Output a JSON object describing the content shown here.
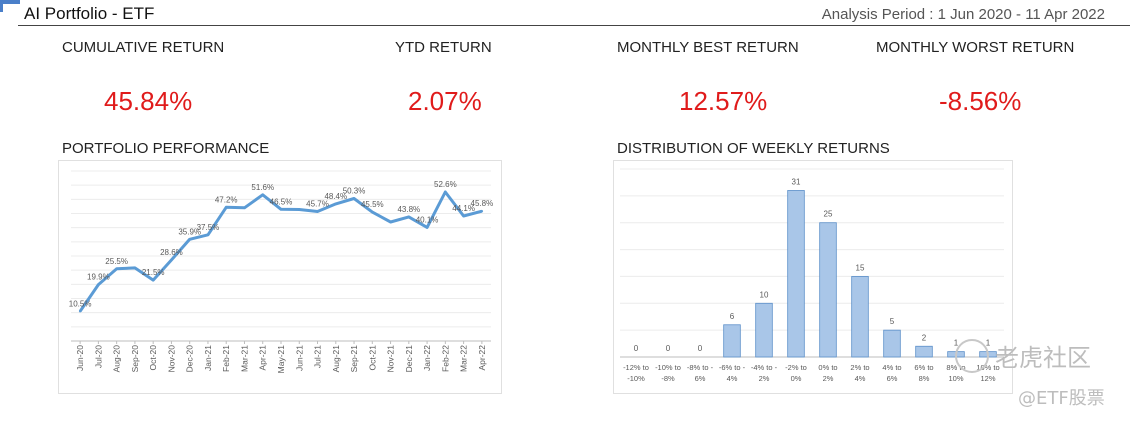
{
  "header": {
    "title": "AI Portfolio - ETF",
    "period": "Analysis Period : 1 Jun 2020 - 11 Apr 2022"
  },
  "metrics": {
    "cumulative": {
      "label": "CUMULATIVE RETURN",
      "value": "45.84%"
    },
    "ytd": {
      "label": "YTD RETURN",
      "value": "2.07%"
    },
    "best": {
      "label": "MONTHLY BEST RETURN",
      "value": "12.57%"
    },
    "worst": {
      "label": "MONTHLY WORST RETURN",
      "value": "-8.56%"
    }
  },
  "sections": {
    "performance": "PORTFOLIO PERFORMANCE",
    "distribution": "DISTRIBUTION OF WEEKLY RETURNS"
  },
  "colors": {
    "accent_red": "#e01b1b",
    "line_blue": "#5b9bd5",
    "bar_fill": "#a9c6e8",
    "bar_stroke": "#5b8fc9"
  },
  "watermark": {
    "main": "老虎社区",
    "sub": "@ETF股票"
  },
  "chart_data": [
    {
      "type": "line",
      "title": "PORTFOLIO PERFORMANCE",
      "categories": [
        "Jun-20",
        "Jul-20",
        "Aug-20",
        "Sep-20",
        "Oct-20",
        "Nov-20",
        "Dec-20",
        "Jan-21",
        "Feb-21",
        "Mar-21",
        "Apr-21",
        "May-21",
        "Jun-21",
        "Jul-21",
        "Aug-21",
        "Sep-21",
        "Oct-21",
        "Nov-21",
        "Dec-21",
        "Jan-22",
        "Feb-22",
        "Mar-22",
        "Apr-22"
      ],
      "values": [
        10.5,
        19.9,
        25.5,
        25.8,
        21.5,
        28.6,
        35.9,
        37.5,
        47.2,
        47.0,
        51.6,
        46.5,
        46.4,
        45.7,
        48.4,
        50.3,
        45.5,
        42.0,
        43.8,
        40.1,
        52.6,
        44.1,
        45.8
      ],
      "data_labels": {
        "0": "10.5%",
        "1": "19.9%",
        "2": "25.5%",
        "4": "21.5%",
        "5": "28.6%",
        "6": "35.9%",
        "7": "37.5%",
        "8": "47.2%",
        "10": "51.6%",
        "11": "46.5%",
        "13": "45.7%",
        "14": "48.4%",
        "15": "50.3%",
        "16": "45.5%",
        "18": "43.8%",
        "19": "40.1%",
        "20": "52.6%",
        "21": "44.1%",
        "22": "45.8%"
      },
      "ylim": [
        0,
        60
      ],
      "grid": true
    },
    {
      "type": "bar",
      "title": "DISTRIBUTION OF WEEKLY RETURNS",
      "categories": [
        [
          "-12% to",
          "-10%"
        ],
        [
          "-10% to",
          "-8%"
        ],
        [
          "-8% to -",
          "6%"
        ],
        [
          "-6% to -",
          "4%"
        ],
        [
          "-4% to -",
          "2%"
        ],
        [
          "-2% to",
          "0%"
        ],
        [
          "0% to",
          "2%"
        ],
        [
          "2% to",
          "4%"
        ],
        [
          "4% to",
          "6%"
        ],
        [
          "6% to",
          "8%"
        ],
        [
          "8% to",
          "10%"
        ],
        [
          "10% to",
          "12%"
        ]
      ],
      "values": [
        0,
        0,
        0,
        6,
        10,
        31,
        25,
        15,
        5,
        2,
        1,
        1
      ],
      "ylim": [
        0,
        35
      ],
      "grid": true
    }
  ]
}
